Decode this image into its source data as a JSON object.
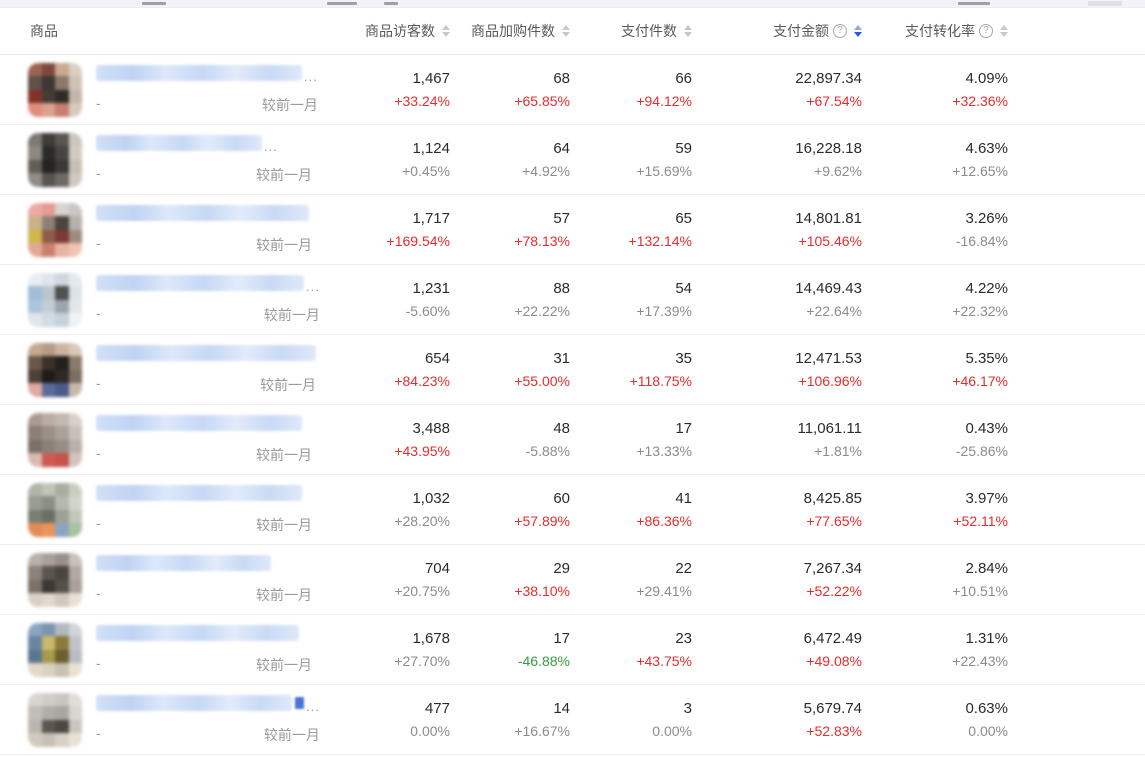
{
  "colors": {
    "red": "#e62c2c",
    "green": "#349e3f",
    "gray": "#8c8c8c",
    "sort_active_blue": "#2f54eb",
    "value_dark": "#2b2b2b"
  },
  "table": {
    "compare_label": "较前一月",
    "dash": "-",
    "ellipsis": "...",
    "columns": [
      {
        "key": "product",
        "label": "商品",
        "sortable": false,
        "help": false,
        "sorted": ""
      },
      {
        "key": "visitors",
        "label": "商品访客数",
        "sortable": true,
        "help": false,
        "sorted": ""
      },
      {
        "key": "cart_items",
        "label": "商品加购件数",
        "sortable": true,
        "help": false,
        "sorted": ""
      },
      {
        "key": "paid_items",
        "label": "支付件数",
        "sortable": true,
        "help": false,
        "sorted": ""
      },
      {
        "key": "payment_amount",
        "label": "支付金额",
        "sortable": true,
        "help": true,
        "sorted": "desc"
      },
      {
        "key": "conversion_rate",
        "label": "支付转化率",
        "sortable": true,
        "help": true,
        "sorted": ""
      }
    ],
    "rows": [
      {
        "product": {
          "title_redacted": true,
          "title_blur_width": 206,
          "has_ellipsis": true,
          "has_blue_fragment": false,
          "thumb_palette": [
            "#9b6352",
            "#7c4a3c",
            "#c9a98f",
            "#d9cfc2",
            "#5f5048",
            "#3e3734",
            "#8a7a6c",
            "#cfc3b6",
            "#83322c",
            "#463c36",
            "#2f2b28",
            "#c2b6a9",
            "#e08d7c",
            "#d9a18e",
            "#c77e6d",
            "#d6cabc"
          ]
        },
        "metrics": [
          {
            "value": "1,467",
            "change": "+33.24%",
            "change_color": "red"
          },
          {
            "value": "68",
            "change": "+65.85%",
            "change_color": "red"
          },
          {
            "value": "66",
            "change": "+94.12%",
            "change_color": "red"
          },
          {
            "value": "22,897.34",
            "change": "+67.54%",
            "change_color": "red"
          },
          {
            "value": "4.09%",
            "change": "+32.36%",
            "change_color": "red"
          }
        ]
      },
      {
        "product": {
          "title_redacted": true,
          "title_blur_width": 166,
          "has_ellipsis": true,
          "has_blue_fragment": false,
          "thumb_palette": [
            "#7d7872",
            "#3f3c39",
            "#5a5651",
            "#cdc6bc",
            "#8e8882",
            "#2c2a27",
            "#474441",
            "#d2cbc1",
            "#625d58",
            "#262422",
            "#3b3835",
            "#c7c0b6",
            "#918b85",
            "#575350",
            "#6e6a65",
            "#cfc8be"
          ]
        },
        "metrics": [
          {
            "value": "1,124",
            "change": "+0.45%",
            "change_color": "gray"
          },
          {
            "value": "64",
            "change": "+4.92%",
            "change_color": "gray"
          },
          {
            "value": "59",
            "change": "+15.69%",
            "change_color": "gray"
          },
          {
            "value": "16,228.18",
            "change": "+9.62%",
            "change_color": "gray"
          },
          {
            "value": "4.63%",
            "change": "+12.65%",
            "change_color": "gray"
          }
        ]
      },
      {
        "product": {
          "title_redacted": true,
          "title_blur_width": 213,
          "has_ellipsis": false,
          "has_blue_fragment": false,
          "thumb_palette": [
            "#efa9a4",
            "#e59b94",
            "#d7d3cf",
            "#c9c7c5",
            "#c9b289",
            "#8d8176",
            "#4d443d",
            "#b6b1ab",
            "#d1b64e",
            "#8c5e4a",
            "#7b3b33",
            "#a18b80",
            "#e2a896",
            "#ca806e",
            "#e7b3a2",
            "#f0c3b2"
          ]
        },
        "metrics": [
          {
            "value": "1,717",
            "change": "+169.54%",
            "change_color": "red"
          },
          {
            "value": "57",
            "change": "+78.13%",
            "change_color": "red"
          },
          {
            "value": "65",
            "change": "+132.14%",
            "change_color": "red"
          },
          {
            "value": "14,801.81",
            "change": "+105.46%",
            "change_color": "red"
          },
          {
            "value": "3.26%",
            "change": "-16.84%",
            "change_color": "gray"
          }
        ]
      },
      {
        "product": {
          "title_redacted": true,
          "title_blur_width": 208,
          "has_ellipsis": true,
          "has_blue_fragment": false,
          "thumb_palette": [
            "#e9edf1",
            "#e0e5eb",
            "#cfd7df",
            "#e5e9ed",
            "#a2bdd9",
            "#bac5cd",
            "#50504e",
            "#dde3e9",
            "#abc5dc",
            "#c3cdd5",
            "#9ca6ae",
            "#e1e7eb",
            "#dee5eb",
            "#d3dbe3",
            "#c7d1d9",
            "#eff2f5"
          ]
        },
        "metrics": [
          {
            "value": "1,231",
            "change": "-5.60%",
            "change_color": "gray"
          },
          {
            "value": "88",
            "change": "+22.22%",
            "change_color": "gray"
          },
          {
            "value": "54",
            "change": "+17.39%",
            "change_color": "gray"
          },
          {
            "value": "14,469.43",
            "change": "+22.64%",
            "change_color": "gray"
          },
          {
            "value": "4.22%",
            "change": "+22.32%",
            "change_color": "gray"
          }
        ]
      },
      {
        "product": {
          "title_redacted": true,
          "title_blur_width": 220,
          "has_ellipsis": false,
          "has_blue_fragment": false,
          "thumb_palette": [
            "#c5a98f",
            "#b59b83",
            "#cbb5a1",
            "#d9c9b9",
            "#6b5749",
            "#3b312b",
            "#25201d",
            "#8b7b6d",
            "#4b3f37",
            "#1f1b19",
            "#2f2925",
            "#7b6d61",
            "#dfa9a1",
            "#5b6b9b",
            "#4b5b8b",
            "#c9b9a9"
          ]
        },
        "metrics": [
          {
            "value": "654",
            "change": "+84.23%",
            "change_color": "red"
          },
          {
            "value": "31",
            "change": "+55.00%",
            "change_color": "red"
          },
          {
            "value": "35",
            "change": "+118.75%",
            "change_color": "red"
          },
          {
            "value": "12,471.53",
            "change": "+106.96%",
            "change_color": "red"
          },
          {
            "value": "5.35%",
            "change": "+46.17%",
            "change_color": "red"
          }
        ]
      },
      {
        "product": {
          "title_redacted": true,
          "title_blur_width": 206,
          "has_ellipsis": false,
          "has_blue_fragment": false,
          "thumb_palette": [
            "#a99b93",
            "#b9ada5",
            "#c3b9b1",
            "#d9d1c9",
            "#8b7f77",
            "#9b8f87",
            "#aba199",
            "#c9c1b9",
            "#7b7169",
            "#8b8179",
            "#978d85",
            "#b9b1a9",
            "#d9b9b1",
            "#cd5b53",
            "#c5534b",
            "#d1c5bd"
          ]
        },
        "metrics": [
          {
            "value": "3,488",
            "change": "+43.95%",
            "change_color": "red"
          },
          {
            "value": "48",
            "change": "-5.88%",
            "change_color": "gray"
          },
          {
            "value": "17",
            "change": "+13.33%",
            "change_color": "gray"
          },
          {
            "value": "11,061.11",
            "change": "+1.81%",
            "change_color": "gray"
          },
          {
            "value": "0.43%",
            "change": "-25.86%",
            "change_color": "gray"
          }
        ]
      },
      {
        "product": {
          "title_redacted": true,
          "title_blur_width": 206,
          "has_ellipsis": false,
          "has_blue_fragment": false,
          "thumb_palette": [
            "#b1b5a9",
            "#c1c5b9",
            "#a9ada1",
            "#c9cdc1",
            "#999d91",
            "#8b8f83",
            "#b5b9ad",
            "#d1d5c9",
            "#7b7f73",
            "#6b6f63",
            "#9ba193",
            "#c1c7bb",
            "#e18b5b",
            "#e9945b",
            "#8ba5c1",
            "#a9c1a1"
          ]
        },
        "metrics": [
          {
            "value": "1,032",
            "change": "+28.20%",
            "change_color": "gray"
          },
          {
            "value": "60",
            "change": "+57.89%",
            "change_color": "red"
          },
          {
            "value": "41",
            "change": "+86.36%",
            "change_color": "red"
          },
          {
            "value": "8,425.85",
            "change": "+77.65%",
            "change_color": "red"
          },
          {
            "value": "3.97%",
            "change": "+52.11%",
            "change_color": "red"
          }
        ]
      },
      {
        "product": {
          "title_redacted": true,
          "title_blur_width": 175,
          "has_ellipsis": false,
          "has_blue_fragment": false,
          "thumb_palette": [
            "#b9b1a9",
            "#a9a199",
            "#999189",
            "#c9c1b9",
            "#8b837b",
            "#5b554f",
            "#4b453f",
            "#b1a9a1",
            "#7b7369",
            "#3b3733",
            "#56514b",
            "#a9a199",
            "#d9d1c5",
            "#e1d9cd",
            "#d1c9bd",
            "#e9e1d5"
          ]
        },
        "metrics": [
          {
            "value": "704",
            "change": "+20.75%",
            "change_color": "gray"
          },
          {
            "value": "29",
            "change": "+38.10%",
            "change_color": "red"
          },
          {
            "value": "22",
            "change": "+29.41%",
            "change_color": "gray"
          },
          {
            "value": "7,267.34",
            "change": "+52.22%",
            "change_color": "red"
          },
          {
            "value": "2.84%",
            "change": "+10.51%",
            "change_color": "gray"
          }
        ]
      },
      {
        "product": {
          "title_redacted": true,
          "title_blur_width": 203,
          "has_ellipsis": false,
          "has_blue_fragment": false,
          "thumb_palette": [
            "#8ba5c1",
            "#7b95b1",
            "#b1b9c1",
            "#d1d5d9",
            "#6b85a1",
            "#c9b96b",
            "#8b7b3b",
            "#c1c5c9",
            "#5b758f",
            "#a99b4b",
            "#6b5f2f",
            "#b9bdc1",
            "#e1d9c9",
            "#d9d1c1",
            "#c9c1b1",
            "#e9e1d1"
          ]
        },
        "metrics": [
          {
            "value": "1,678",
            "change": "+27.70%",
            "change_color": "gray"
          },
          {
            "value": "17",
            "change": "-46.88%",
            "change_color": "green"
          },
          {
            "value": "23",
            "change": "+43.75%",
            "change_color": "red"
          },
          {
            "value": "6,472.49",
            "change": "+49.08%",
            "change_color": "red"
          },
          {
            "value": "1.31%",
            "change": "+22.43%",
            "change_color": "gray"
          }
        ]
      },
      {
        "product": {
          "title_redacted": true,
          "title_blur_width": 196,
          "has_ellipsis": true,
          "has_blue_fragment": true,
          "thumb_palette": [
            "#d9d5d1",
            "#d1cdc9",
            "#c9c5c1",
            "#e1ddd9",
            "#c1bdb9",
            "#b1ada9",
            "#a9a5a1",
            "#d9d5d1",
            "#b9b5b1",
            "#5b5751",
            "#4b4741",
            "#c9c5c1",
            "#d1c9bd",
            "#c9c1b5",
            "#d9d1c5",
            "#e9e1d5"
          ]
        },
        "metrics": [
          {
            "value": "477",
            "change": "0.00%",
            "change_color": "gray"
          },
          {
            "value": "14",
            "change": "+16.67%",
            "change_color": "gray"
          },
          {
            "value": "3",
            "change": "0.00%",
            "change_color": "gray"
          },
          {
            "value": "5,679.74",
            "change": "+52.83%",
            "change_color": "red"
          },
          {
            "value": "0.63%",
            "change": "0.00%",
            "change_color": "gray"
          }
        ]
      }
    ]
  }
}
